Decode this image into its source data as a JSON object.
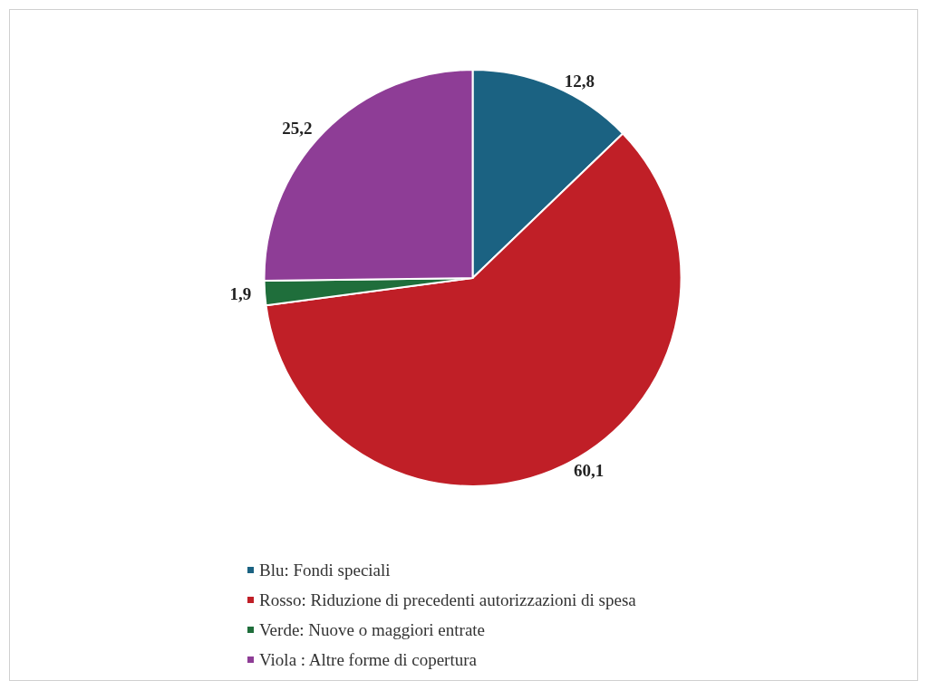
{
  "chart_data": {
    "type": "pie",
    "categories": [
      "Blu: Fondi speciali",
      "Rosso: Riduzione di precedenti autorizzazioni di spesa",
      "Verde: Nuove o maggiori entrate",
      "Viola : Altre forme di copertura"
    ],
    "values": [
      12.8,
      60.1,
      1.9,
      25.2
    ],
    "colors": [
      "#1b6282",
      "#c01f27",
      "#1f6e3b",
      "#8e3d96"
    ],
    "value_labels": [
      "12,8",
      "60,1",
      "1,9",
      "25,2"
    ],
    "legend": "bottom"
  }
}
